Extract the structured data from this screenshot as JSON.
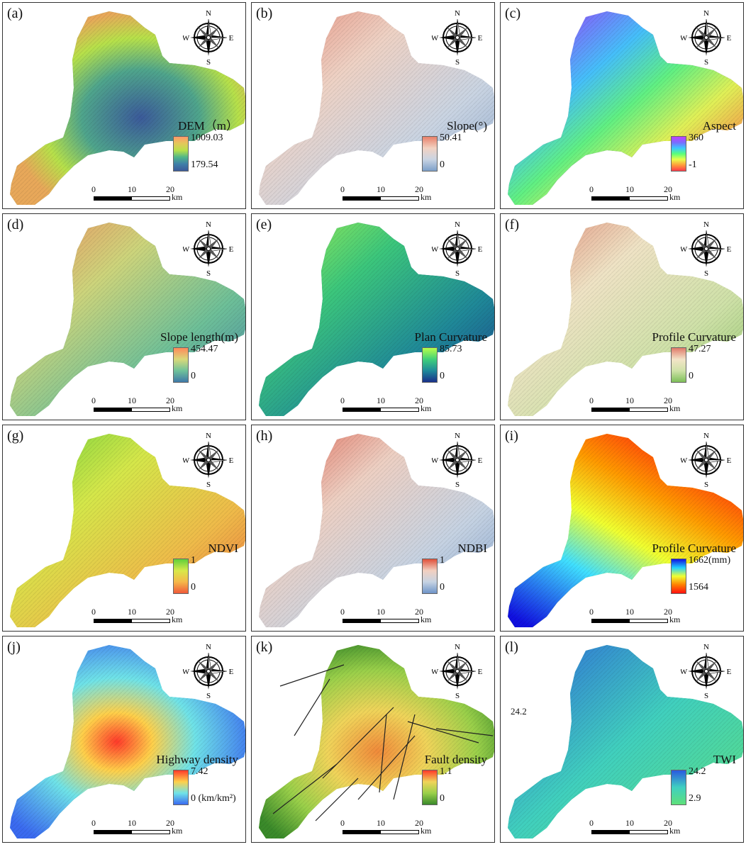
{
  "panels": [
    {
      "label": "(a)",
      "title": "DEM（m）",
      "max": "1009.03",
      "min": "179.54",
      "ramp": [
        "#ff9a6a",
        "#e3c85a",
        "#b7e14a",
        "#4fb68a",
        "#3f7fa8",
        "#3b5a9a"
      ],
      "fill": "terrain"
    },
    {
      "label": "(b)",
      "title": "Slope(°)",
      "max": "50.41",
      "min": "0",
      "ramp": [
        "#e8806a",
        "#f2d2c2",
        "#c9d4e3",
        "#7d9fc9"
      ],
      "fill": "bluegray"
    },
    {
      "label": "(c)",
      "title": "Aspect",
      "max": "360",
      "min": "-1",
      "ramp": [
        "#c040ff",
        "#7a6bff",
        "#3cc8ff",
        "#5aff7a",
        "#e8ff4a",
        "#ff9a3a",
        "#ff3a4a"
      ],
      "fill": "rainbow"
    },
    {
      "label": "(d)",
      "title": "Slope length(m)",
      "max": "454.47",
      "min": "0",
      "ramp": [
        "#ff8a5a",
        "#d9d97a",
        "#6fc29a",
        "#3f79a8"
      ],
      "fill": "slopelen"
    },
    {
      "label": "(e)",
      "title": "Plan Curvature",
      "max": "85.73",
      "min": "0",
      "ramp": [
        "#b8ff4a",
        "#3fcf7a",
        "#1f8a9a",
        "#1a2f8a"
      ],
      "fill": "plan"
    },
    {
      "label": "(f)",
      "title": "Profile Curvature",
      "max": "47.27",
      "min": "0",
      "ramp": [
        "#e07a6a",
        "#f3e4c8",
        "#cfe2a8",
        "#7fbf5a"
      ],
      "fill": "profile"
    },
    {
      "label": "(g)",
      "title": "NDVI",
      "max": "1",
      "min": "0",
      "ramp": [
        "#5fcf3a",
        "#d8e94a",
        "#f5b84a",
        "#f05a3a"
      ],
      "fill": "ndvi"
    },
    {
      "label": "(h)",
      "title": "NDBI",
      "max": "1",
      "min": "0",
      "ramp": [
        "#e0503a",
        "#f2d0c0",
        "#c6d3e3",
        "#6f94c8"
      ],
      "fill": "ndbi"
    },
    {
      "label": "(i)",
      "title": "Profile Curvature",
      "max": "1662(mm)",
      "min": "1564",
      "ramp": [
        "#1010e0",
        "#20d0ff",
        "#f0ff30",
        "#ff8000",
        "#ff1010"
      ],
      "fill": "rain"
    },
    {
      "label": "(j)",
      "title": "Highway density",
      "max": "7.42",
      "min": "0 (km/km²)",
      "ramp": [
        "#ff3a2a",
        "#ffd04a",
        "#6fe3e8",
        "#3a6af0"
      ],
      "fill": "highway"
    },
    {
      "label": "(k)",
      "title": "Fault density",
      "max": "1.1",
      "min": "0",
      "ramp": [
        "#ff3a2a",
        "#f0d45a",
        "#9ad04a",
        "#3a8a2a"
      ],
      "fill": "fault"
    },
    {
      "label": "(l)",
      "title": "TWI",
      "max": "24.2",
      "min": "2.9",
      "ramp": [
        "#2a5ae0",
        "#3fd0c0",
        "#5fe07a"
      ],
      "fill": "twi",
      "extra": "24.2"
    }
  ],
  "compass": {
    "n": "N",
    "s": "S",
    "e": "E",
    "w": "W"
  },
  "scalebar": {
    "ticks": [
      "0",
      "10",
      "20"
    ],
    "unit": "km"
  }
}
